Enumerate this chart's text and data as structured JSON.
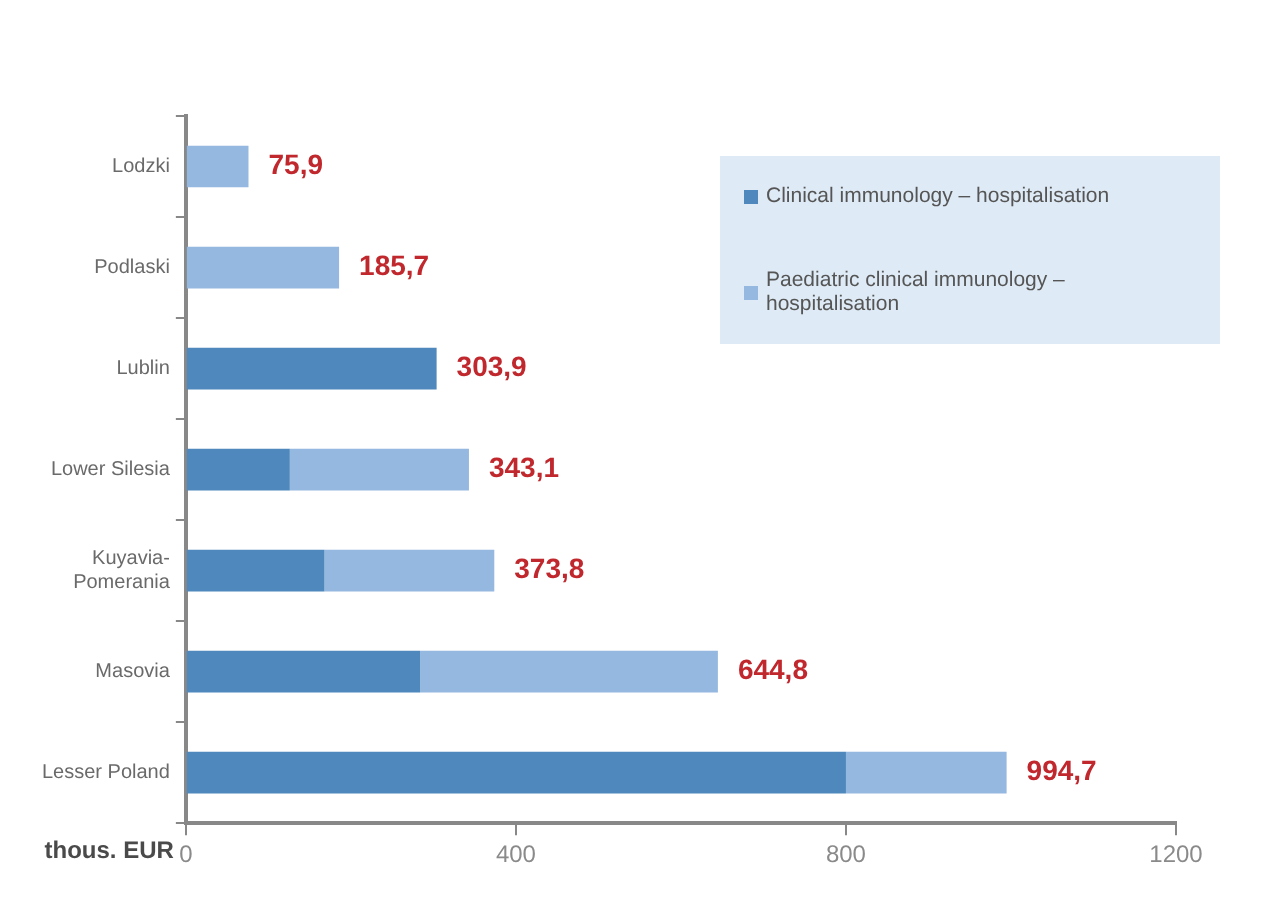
{
  "chart_data": {
    "type": "bar",
    "orientation": "horizontal",
    "stacked": true,
    "xlabel": "thous. EUR",
    "categories": [
      "Lodzki",
      "Podlaski",
      "Lublin",
      "Lower Silesia",
      "Kuyavia-Pomerania",
      "Masovia",
      "Lesser Poland"
    ],
    "series": [
      {
        "name": "Clinical immunology – hospitalisation",
        "color": "#4f88bd",
        "values": [
          null,
          null,
          303.9,
          126,
          168,
          284,
          800
        ]
      },
      {
        "name": "Paediatric clinical immunology – hospitalisation",
        "color": "#95b8e0",
        "values": [
          75.9,
          185.7,
          null,
          217.1,
          205.8,
          360.8,
          194.7
        ]
      }
    ],
    "totals": [
      "75,9",
      "185,7",
      "303,9",
      "343,1",
      "373,8",
      "644,8",
      "994,7"
    ],
    "xlim": [
      0,
      1200
    ],
    "xticks": [
      0,
      400,
      800,
      1200
    ],
    "grid": false,
    "legend": "top right"
  }
}
